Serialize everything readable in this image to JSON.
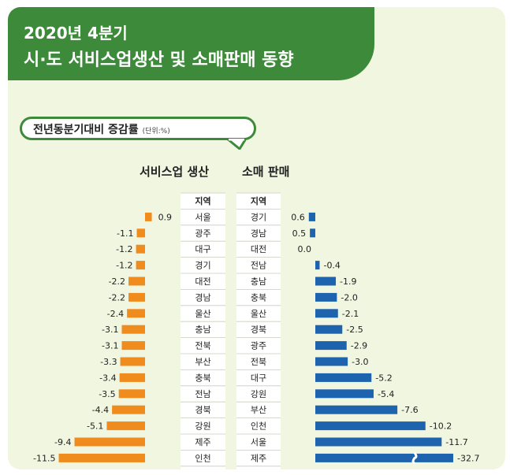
{
  "header": {
    "title_line1": "2020년 4분기",
    "title_line2": "시·도 서비스업생산 및 소매판매 동향"
  },
  "subtitle": {
    "main": "전년동분기대비 증감률",
    "unit": "(단위:%)"
  },
  "colors": {
    "header_green": "#3d8a3a",
    "panel_bg": "#f1f6e0",
    "service_bar": "#f08c1e",
    "retail_bar": "#1e63ad"
  },
  "chart_data": [
    {
      "type": "bar",
      "title": "서비스업 생산",
      "region_header": "지역",
      "categories": [
        "서울",
        "광주",
        "대구",
        "경기",
        "대전",
        "경남",
        "울산",
        "충남",
        "전북",
        "부산",
        "충북",
        "전남",
        "경북",
        "강원",
        "제주",
        "인천"
      ],
      "values": [
        0.9,
        -1.1,
        -1.2,
        -1.2,
        -2.2,
        -2.2,
        -2.4,
        -3.1,
        -3.1,
        -3.3,
        -3.4,
        -3.5,
        -4.4,
        -5.1,
        -9.4,
        -11.5
      ],
      "labels": [
        "0.9",
        "-1.1",
        "-1.2",
        "-1.2",
        "-2.2",
        "-2.2",
        "-2.4",
        "-3.1",
        "-3.1",
        "-3.3",
        "-3.4",
        "-3.5",
        "-4.4",
        "-5.1",
        "-9.4",
        "-11.5"
      ]
    },
    {
      "type": "bar",
      "title": "소매 판매",
      "region_header": "지역",
      "categories": [
        "경기",
        "경남",
        "대전",
        "전남",
        "충남",
        "충북",
        "울산",
        "경북",
        "광주",
        "전북",
        "대구",
        "강원",
        "부산",
        "인천",
        "서울",
        "제주"
      ],
      "values": [
        0.6,
        0.5,
        0.0,
        -0.4,
        -1.9,
        -2.0,
        -2.1,
        -2.5,
        -2.9,
        -3.0,
        -5.2,
        -5.4,
        -7.6,
        -10.2,
        -11.7,
        -32.7
      ],
      "labels": [
        "0.6",
        "0.5",
        "0.0",
        "-0.4",
        "-1.9",
        "-2.0",
        "-2.1",
        "-2.5",
        "-2.9",
        "-3.0",
        "-5.2",
        "-5.4",
        "-7.6",
        "-10.2",
        "-11.7",
        "-32.7"
      ],
      "axis_break_on": "제주"
    }
  ]
}
